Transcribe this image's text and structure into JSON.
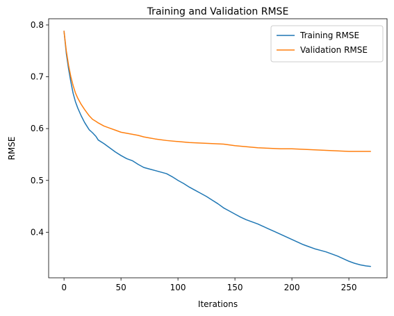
{
  "chart_data": {
    "type": "line",
    "title": "Training and Validation RMSE",
    "xlabel": "Iterations",
    "ylabel": "RMSE",
    "xlim": [
      -13.5,
      283.5
    ],
    "ylim": [
      0.312,
      0.812
    ],
    "xticks": [
      0,
      50,
      100,
      150,
      200,
      250
    ],
    "yticks": [
      0.4,
      0.5,
      0.6,
      0.7,
      0.8
    ],
    "xtick_labels": [
      "0",
      "50",
      "100",
      "150",
      "200",
      "250"
    ],
    "ytick_labels": [
      "0.4",
      "0.5",
      "0.6",
      "0.7",
      "0.8"
    ],
    "grid": false,
    "legend_position": "top-right",
    "series": [
      {
        "name": "Training RMSE",
        "color": "#1f77b4",
        "x": [
          0,
          2,
          4,
          6,
          8,
          10,
          12,
          15,
          18,
          20,
          22,
          25,
          28,
          30,
          35,
          40,
          45,
          50,
          55,
          60,
          65,
          70,
          75,
          80,
          85,
          90,
          95,
          100,
          105,
          110,
          115,
          120,
          125,
          130,
          135,
          140,
          145,
          150,
          155,
          160,
          165,
          170,
          175,
          180,
          185,
          190,
          195,
          200,
          205,
          210,
          215,
          220,
          225,
          230,
          235,
          240,
          245,
          250,
          255,
          260,
          265,
          269
        ],
        "y": [
          0.788,
          0.745,
          0.715,
          0.69,
          0.668,
          0.652,
          0.64,
          0.625,
          0.612,
          0.605,
          0.598,
          0.592,
          0.585,
          0.578,
          0.571,
          0.563,
          0.555,
          0.548,
          0.542,
          0.538,
          0.531,
          0.525,
          0.522,
          0.519,
          0.516,
          0.513,
          0.507,
          0.5,
          0.494,
          0.487,
          0.481,
          0.475,
          0.469,
          0.462,
          0.455,
          0.447,
          0.441,
          0.435,
          0.429,
          0.424,
          0.42,
          0.416,
          0.411,
          0.406,
          0.401,
          0.396,
          0.391,
          0.386,
          0.381,
          0.376,
          0.372,
          0.368,
          0.365,
          0.362,
          0.358,
          0.354,
          0.349,
          0.344,
          0.34,
          0.337,
          0.335,
          0.334
        ]
      },
      {
        "name": "Validation RMSE",
        "color": "#ff7f0e",
        "x": [
          0,
          2,
          4,
          6,
          8,
          10,
          12,
          15,
          18,
          20,
          22,
          25,
          28,
          30,
          35,
          40,
          45,
          50,
          55,
          60,
          65,
          70,
          75,
          80,
          90,
          100,
          110,
          120,
          130,
          140,
          150,
          160,
          170,
          180,
          190,
          200,
          210,
          220,
          230,
          240,
          250,
          260,
          269
        ],
        "y": [
          0.788,
          0.75,
          0.722,
          0.7,
          0.683,
          0.669,
          0.659,
          0.647,
          0.637,
          0.631,
          0.625,
          0.618,
          0.614,
          0.611,
          0.605,
          0.601,
          0.597,
          0.593,
          0.591,
          0.589,
          0.587,
          0.584,
          0.582,
          0.58,
          0.577,
          0.575,
          0.573,
          0.572,
          0.571,
          0.57,
          0.567,
          0.565,
          0.563,
          0.562,
          0.561,
          0.561,
          0.56,
          0.559,
          0.558,
          0.557,
          0.556,
          0.556,
          0.556
        ]
      }
    ]
  }
}
